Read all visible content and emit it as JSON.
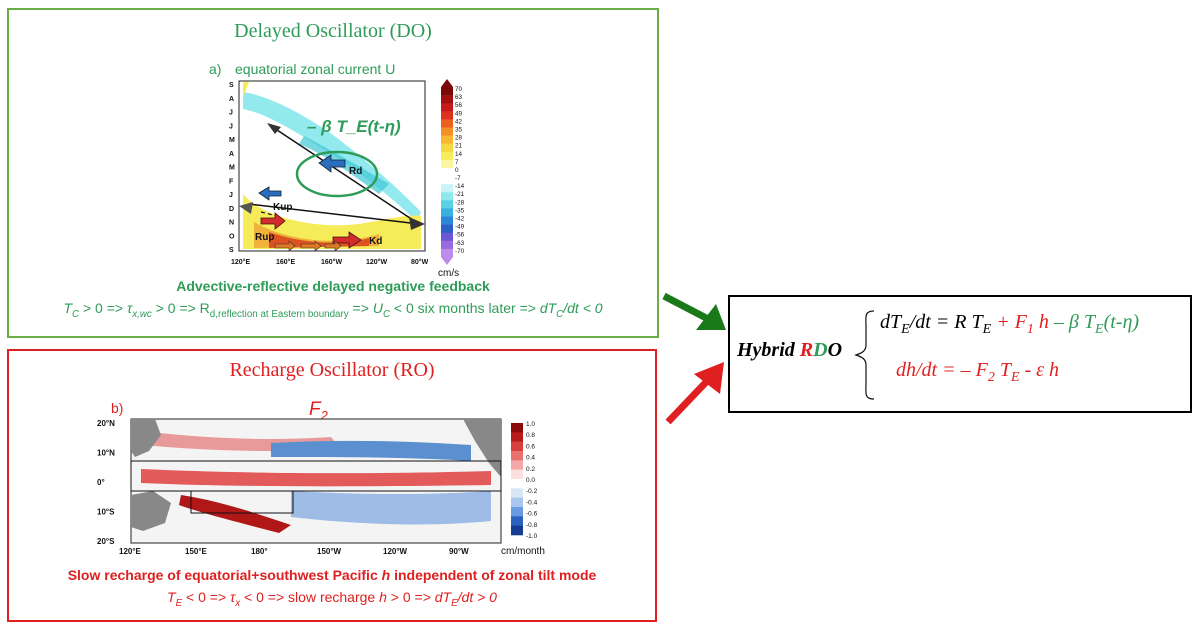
{
  "do_panel": {
    "title": "Delayed Oscillator (DO)",
    "panel_label": "a)",
    "map_title": "equatorial zonal current U",
    "formula": "– β T_E(t-η)",
    "wave_labels": [
      "Rd",
      "Kup",
      "Rup",
      "Kd"
    ],
    "month_axis": [
      "S",
      "O",
      "N",
      "D",
      "J",
      "F",
      "M",
      "A",
      "M",
      "J",
      "J",
      "A",
      "S"
    ],
    "lon_ticks": [
      "120°E",
      "160°E",
      "160°W",
      "120°W",
      "80°W"
    ],
    "colorbar_ticks": [
      "70",
      "63",
      "56",
      "49",
      "42",
      "35",
      "28",
      "21",
      "14",
      "7",
      "0",
      "-7",
      "-14",
      "-21",
      "-28",
      "-35",
      "-42",
      "-49",
      "-56",
      "-63",
      "-70"
    ],
    "unit": "cm/s",
    "caption": "Advective-reflective delayed negative feedback",
    "chain": {
      "tc": "T",
      "tc_sub": "C",
      "part1": " > 0 => ",
      "tau": "τ",
      "tau_sub": "x,wc",
      "part2": " > 0 => R",
      "r_sub": "d,reflection at Eastern boundary",
      "part3": " => ",
      "u": "U",
      "u_sub": "C",
      "part4": " < 0 six months later => ",
      "dt": "dT",
      "dt_sub": "C",
      "part5": "/dt < 0"
    }
  },
  "ro_panel": {
    "title": "Recharge Oscillator (RO)",
    "panel_label": "b)",
    "map_title": "F",
    "map_title_sub": "2",
    "lat_ticks": [
      "20°N",
      "10°N",
      "0°",
      "10°S",
      "20°S"
    ],
    "lon_ticks": [
      "120°E",
      "150°E",
      "180°",
      "150°W",
      "120°W",
      "90°W"
    ],
    "colorbar_ticks": [
      "1.0",
      "0.8",
      "0.6",
      "0.4",
      "0.2",
      "0.0",
      "-0.2",
      "-0.4",
      "-0.6",
      "-0.8",
      "-1.0"
    ],
    "unit": "cm/month",
    "caption_a": "Slow recharge of equatorial+southwest Pacific ",
    "caption_h": "h",
    "caption_b": " independent of zonal tilt mode",
    "chain": {
      "te": "T",
      "te_sub": "E",
      "part1": " < 0 => ",
      "tau": "τ",
      "tau_sub": "x",
      "part2": " < 0 => slow recharge ",
      "h": "h",
      "part3": " > 0 => ",
      "dt": "dT",
      "dt_sub": "E",
      "part4": "/dt > 0"
    }
  },
  "rdo": {
    "title_a": "Hybrid ",
    "title_r": "R",
    "title_d": "D",
    "title_o": "O",
    "eq1": {
      "a": "dT",
      "a_sub": "E",
      "b": "/dt = R T",
      "b_sub": "E",
      "c": " + F",
      "c_sub": "1",
      "d": " h",
      "e": " – β T",
      "e_sub": "E",
      "f": "(t-η)"
    },
    "eq2": {
      "a": "dh/dt = – F",
      "a_sub": "2",
      "b": " T",
      "b_sub": "E",
      "c": " - ε h"
    }
  },
  "colors": {
    "green": "#2e9c58",
    "red": "#e02020",
    "frame_green": "#6aac46",
    "arrow_green": "#1a7a1a"
  }
}
